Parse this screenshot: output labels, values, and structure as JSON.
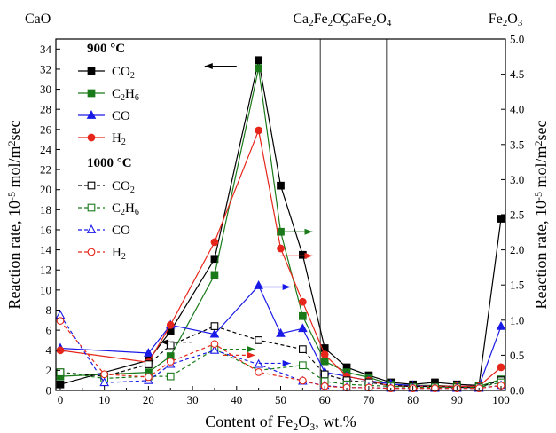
{
  "chart_data": {
    "type": "line",
    "xlabel": "Content of Fe$_2$O$_3$, wt.%",
    "ylabel": "Reaction rate, 10$^{-5}$ mol/m$^2$sec",
    "ylabel_right": "Reaction rate, 10$^{-5}$ mol/m$^2$sec",
    "xlim": [
      -1,
      101
    ],
    "ylim": [
      0,
      35
    ],
    "ylim_right": [
      0,
      5.0
    ],
    "x_ticks": [
      0,
      10,
      20,
      30,
      40,
      50,
      60,
      70,
      80,
      90,
      100
    ],
    "y_ticks": [
      0,
      2,
      4,
      6,
      8,
      10,
      12,
      14,
      16,
      18,
      20,
      22,
      24,
      26,
      28,
      30,
      32,
      34
    ],
    "y_ticks_right": [
      "0.0",
      "0.5",
      "1.0",
      "1.5",
      "2.0",
      "2.5",
      "3.0",
      "3.5",
      "4.0",
      "4.5",
      "5.0"
    ],
    "phase_labels": [
      {
        "text": "CaO",
        "x": 0
      },
      {
        "text": "Ca$_2$Fe$_2$O$_5$",
        "x": 59
      },
      {
        "text": "CaFe$_2$O$_4$",
        "x": 74
      },
      {
        "text": "Fe$_2$O$_3$",
        "x": 100
      }
    ],
    "phase_lines_x": [
      59,
      74
    ],
    "legend_headers": [
      "900 °C",
      "1000 °C"
    ],
    "legend_position": "top-left",
    "colors": {
      "CO2": "#000000",
      "C2H6": "#1a7a1a",
      "CO": "#1a1ae6",
      "H2": "#e6261a"
    },
    "series": [
      {
        "name": "CO$_2$",
        "group": "900 °C",
        "color": "#000000",
        "marker": "square-filled",
        "dash": "solid",
        "axis": "left",
        "x": [
          0,
          20,
          25,
          35,
          45,
          50,
          55,
          60,
          65,
          70,
          75,
          80,
          85,
          90,
          95,
          100
        ],
        "y": [
          0.6,
          3.0,
          5.9,
          13.1,
          32.9,
          20.4,
          13.5,
          4.2,
          2.3,
          1.5,
          0.8,
          0.6,
          0.8,
          0.6,
          0.5,
          17.1
        ]
      },
      {
        "name": "C$_2$H$_6$",
        "group": "900 °C",
        "color": "#1a7a1a",
        "marker": "square-filled",
        "dash": "solid",
        "axis": "left",
        "x": [
          0,
          20,
          25,
          35,
          45,
          50,
          55,
          60,
          65,
          70,
          75,
          80,
          85,
          90,
          95,
          100
        ],
        "y": [
          1.4,
          1.8,
          3.4,
          11.5,
          32.1,
          15.8,
          7.4,
          2.9,
          1.8,
          1.3,
          0.6,
          0.5,
          0.5,
          0.4,
          0.4,
          1.1
        ]
      },
      {
        "name": "CO",
        "group": "900 °C",
        "color": "#1a1ae6",
        "marker": "triangle-filled",
        "dash": "solid",
        "axis": "right",
        "x": [
          0,
          20,
          25,
          35,
          45,
          50,
          55,
          60,
          65,
          70,
          75,
          80,
          85,
          90,
          95,
          100
        ],
        "y": [
          0.6,
          0.53,
          0.93,
          0.8,
          1.49,
          0.81,
          0.88,
          0.26,
          0.2,
          0.14,
          0.09,
          0.07,
          0.06,
          0.06,
          0.06,
          0.91
        ]
      },
      {
        "name": "H$_2$",
        "group": "900 °C",
        "color": "#e6261a",
        "marker": "circle-filled",
        "dash": "solid",
        "axis": "right",
        "x": [
          0,
          20,
          25,
          35,
          45,
          50,
          55,
          60,
          65,
          70,
          75,
          80,
          85,
          90,
          95,
          100
        ],
        "y": [
          0.57,
          0.4,
          0.93,
          2.11,
          3.7,
          2.02,
          1.26,
          0.51,
          0.2,
          0.14,
          0.06,
          0.06,
          0.06,
          0.06,
          0.06,
          0.33
        ]
      },
      {
        "name": "CO$_2$",
        "group": "1000 °C",
        "color": "#000000",
        "marker": "square-open",
        "dash": "dashed",
        "axis": "left",
        "x": [
          0,
          10,
          20,
          25,
          35,
          45,
          55,
          60,
          65,
          70,
          75,
          80,
          85,
          90,
          95,
          100
        ],
        "y": [
          1.8,
          1.4,
          2.6,
          4.5,
          6.4,
          5.0,
          4.1,
          1.6,
          1.0,
          0.8,
          0.5,
          0.4,
          0.4,
          0.3,
          0.3,
          1.0
        ]
      },
      {
        "name": "C$_2$H$_6$",
        "group": "1000 °C",
        "color": "#1a7a1a",
        "marker": "square-open",
        "dash": "dashed",
        "axis": "left",
        "x": [
          0,
          10,
          20,
          25,
          35,
          45,
          55,
          60,
          65,
          70,
          75,
          80,
          85,
          90,
          95,
          100
        ],
        "y": [
          1.8,
          1.2,
          1.4,
          1.4,
          4.1,
          2.0,
          2.5,
          0.9,
          0.6,
          0.5,
          0.4,
          0.3,
          0.3,
          0.3,
          0.3,
          0.8
        ]
      },
      {
        "name": "CO",
        "group": "1000 °C",
        "color": "#1a1ae6",
        "marker": "triangle-open",
        "dash": "dashed",
        "axis": "right",
        "x": [
          0,
          10,
          20,
          25,
          35,
          45,
          55,
          60,
          65,
          70,
          75,
          80,
          85,
          90,
          95,
          100
        ],
        "y": [
          1.07,
          0.11,
          0.14,
          0.37,
          0.57,
          0.37,
          0.13,
          0.07,
          0.04,
          0.04,
          0.03,
          0.03,
          0.03,
          0.03,
          0.03,
          0.07
        ]
      },
      {
        "name": "H$_2$",
        "group": "1000 °C",
        "color": "#e6261a",
        "marker": "circle-open",
        "dash": "dashed",
        "axis": "right",
        "x": [
          0,
          10,
          20,
          25,
          35,
          45,
          55,
          60,
          65,
          70,
          75,
          80,
          85,
          90,
          95,
          100
        ],
        "y": [
          0.99,
          0.23,
          0.19,
          0.41,
          0.66,
          0.26,
          0.14,
          0.06,
          0.04,
          0.04,
          0.03,
          0.03,
          0.03,
          0.03,
          0.03,
          0.07
        ]
      }
    ],
    "axis_arrows": [
      {
        "color": "#000000",
        "x": 40,
        "y": 32.3,
        "dir": "left",
        "dash": "solid",
        "axis": "left"
      },
      {
        "color": "#1a7a1a",
        "x": 50,
        "y": 15.8,
        "dir": "right",
        "dash": "solid",
        "axis": "left"
      },
      {
        "color": "#e6261a",
        "x": 50,
        "y": 13.4,
        "dir": "right",
        "dash": "solid",
        "axis": "left"
      },
      {
        "color": "#1a1ae6",
        "x": 45,
        "y": 10.3,
        "dir": "right",
        "dash": "solid",
        "axis": "left"
      },
      {
        "color": "#000000",
        "x": 30,
        "y": 4.8,
        "dir": "left",
        "dash": "dashed",
        "axis": "left"
      },
      {
        "color": "#1a7a1a",
        "x": 37,
        "y": 4.1,
        "dir": "right",
        "dash": "dashed",
        "axis": "left"
      },
      {
        "color": "#e6261a",
        "x": 37,
        "y": 3.5,
        "dir": "right",
        "dash": "dashed",
        "axis": "left"
      },
      {
        "color": "#1a1ae6",
        "x": 45,
        "y": 2.7,
        "dir": "right",
        "dash": "dashed",
        "axis": "left"
      }
    ]
  }
}
